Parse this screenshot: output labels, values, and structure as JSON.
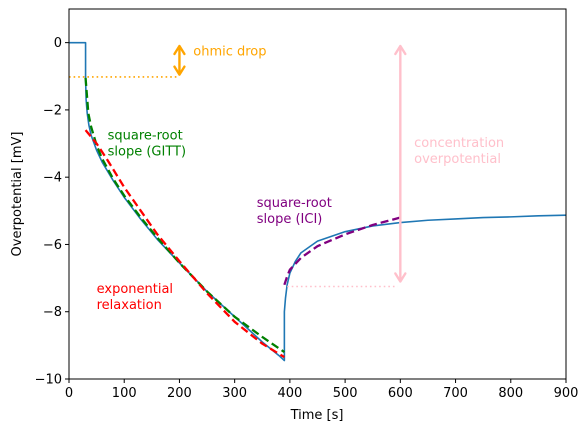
{
  "chart_data": {
    "type": "line",
    "title": "",
    "xlabel": "Time [s]",
    "ylabel": "Overpotential [mV]",
    "xlim": [
      0,
      900
    ],
    "ylim": [
      -10,
      1
    ],
    "xticks": [
      0,
      100,
      200,
      300,
      400,
      500,
      600,
      700,
      800,
      900
    ],
    "yticks": [
      0,
      -2,
      -4,
      -6,
      -8,
      -10
    ],
    "xtick_labels": [
      "0",
      "100",
      "200",
      "300",
      "400",
      "500",
      "600",
      "700",
      "800",
      "900"
    ],
    "ytick_labels": [
      "0",
      "−2",
      "−4",
      "−6",
      "−8",
      "−10"
    ],
    "grid": false,
    "colors": {
      "main": "#1f77b4",
      "ohmic": "#ffa500",
      "gitt": "#008000",
      "exponential": "#ff0000",
      "ici": "#800080",
      "concentration": "#ffc0cb"
    },
    "series": [
      {
        "style": "solid",
        "color_key": "main",
        "x": [
          0,
          30,
          30,
          31,
          33,
          36,
          40,
          50,
          60,
          80,
          100,
          130,
          160,
          200,
          250,
          300,
          350,
          380,
          390,
          390,
          392,
          395,
          400,
          410,
          420,
          450,
          500,
          550,
          600,
          650,
          700,
          750,
          800,
          850,
          900
        ],
        "y": [
          0,
          0,
          -1.05,
          -1.7,
          -2.1,
          -2.45,
          -2.75,
          -3.2,
          -3.55,
          -4.1,
          -4.6,
          -5.25,
          -5.85,
          -6.55,
          -7.4,
          -8.15,
          -8.9,
          -9.3,
          -9.45,
          -8.0,
          -7.6,
          -7.2,
          -6.85,
          -6.5,
          -6.25,
          -5.9,
          -5.62,
          -5.45,
          -5.35,
          -5.28,
          -5.24,
          -5.2,
          -5.18,
          -5.15,
          -5.13
        ]
      },
      {
        "style": "dashed",
        "color_key": "gitt",
        "x": [
          30,
          35,
          40,
          50,
          60,
          80,
          100,
          130,
          160,
          200,
          250,
          300,
          350,
          390
        ],
        "y": [
          -1.05,
          -2.1,
          -2.5,
          -3.05,
          -3.45,
          -4.05,
          -4.55,
          -5.2,
          -5.8,
          -6.55,
          -7.4,
          -8.15,
          -8.75,
          -9.2
        ]
      },
      {
        "style": "dashed",
        "color_key": "exponential",
        "x": [
          30,
          50,
          70,
          100,
          130,
          160,
          200,
          250,
          300,
          350,
          390
        ],
        "y": [
          -2.6,
          -3.0,
          -3.5,
          -4.3,
          -5.0,
          -5.7,
          -6.5,
          -7.45,
          -8.3,
          -8.95,
          -9.35
        ]
      },
      {
        "style": "dashed",
        "color_key": "ici",
        "x": [
          390,
          395,
          400,
          420,
          450,
          500,
          550,
          600
        ],
        "y": [
          -7.2,
          -6.95,
          -6.75,
          -6.4,
          -6.05,
          -5.7,
          -5.42,
          -5.2
        ]
      },
      {
        "style": "dotted",
        "color_key": "ohmic",
        "x": [
          0,
          195
        ],
        "y": [
          -1.02,
          -1.02
        ]
      },
      {
        "style": "dotted",
        "color_key": "concentration",
        "x": [
          395,
          595
        ],
        "y": [
          -7.25,
          -7.25
        ]
      }
    ],
    "arrows": [
      {
        "color_key": "ohmic",
        "x": 200,
        "y1": -0.1,
        "y2": -0.95
      },
      {
        "color_key": "concentration",
        "x": 600,
        "y1": -0.1,
        "y2": -7.1
      }
    ],
    "annotations": [
      {
        "id": "ohmic",
        "lines": [
          "ohmic drop"
        ],
        "color_key": "ohmic",
        "x": 225,
        "y": -0.38
      },
      {
        "id": "gitt",
        "lines": [
          "square-root",
          "slope (GITT)"
        ],
        "color_key": "gitt",
        "x": 70,
        "y": -2.88
      },
      {
        "id": "exponential",
        "lines": [
          "exponential",
          "relaxation"
        ],
        "color_key": "exponential",
        "x": 50,
        "y": -7.45
      },
      {
        "id": "ici",
        "lines": [
          "square-root",
          "slope (ICI)"
        ],
        "color_key": "ici",
        "x": 340,
        "y": -4.88
      },
      {
        "id": "concentration",
        "lines": [
          "concentration",
          "overpotential"
        ],
        "color_key": "concentration",
        "x": 625,
        "y": -3.1
      }
    ]
  }
}
